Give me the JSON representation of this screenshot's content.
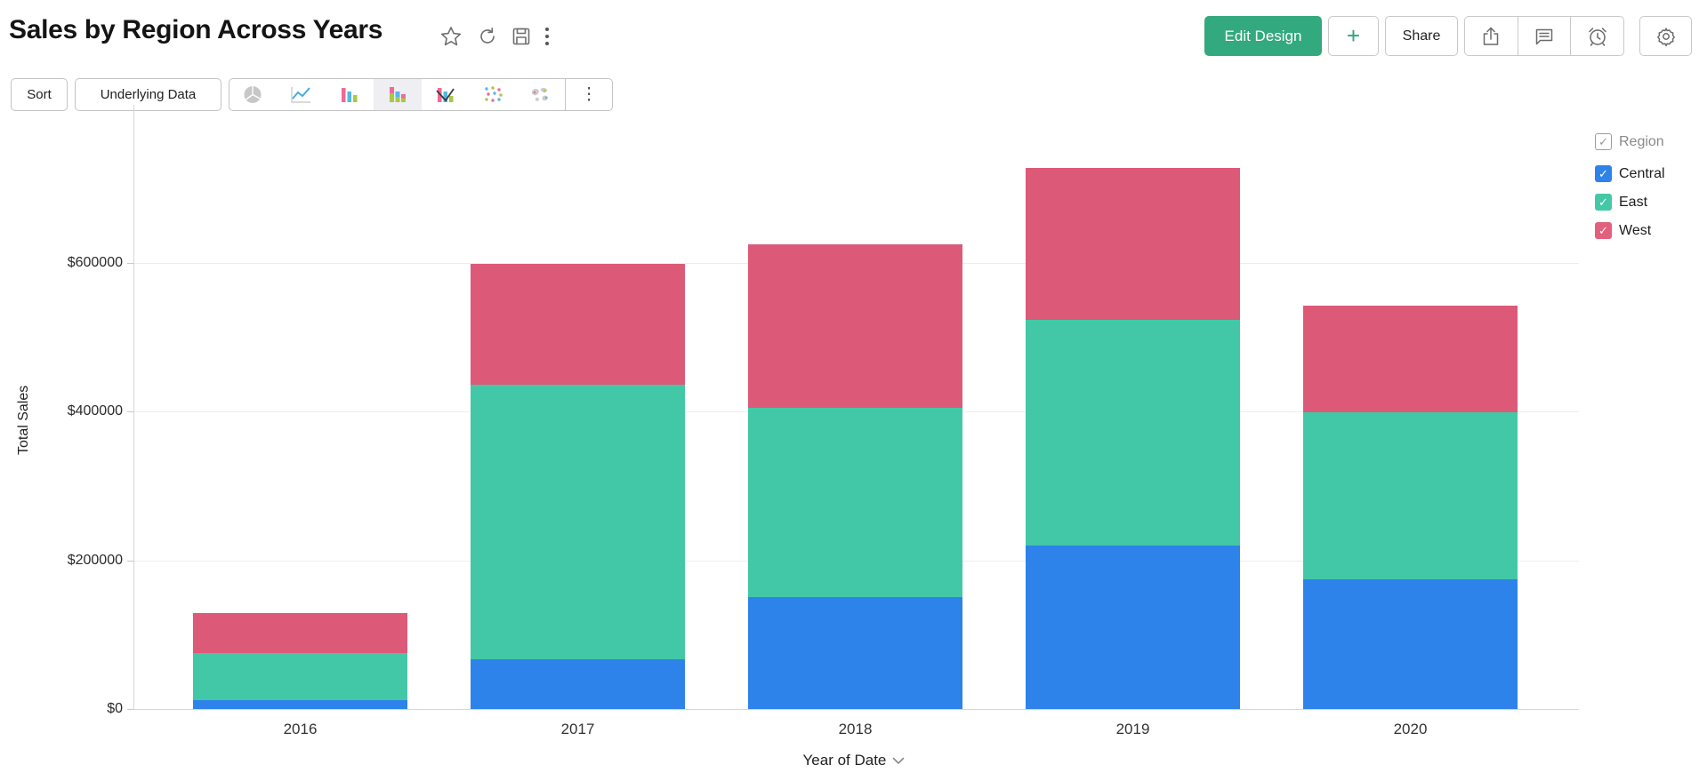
{
  "header": {
    "title": "Sales by Region Across Years",
    "icons": [
      "star",
      "refresh",
      "save",
      "more-vertical"
    ],
    "edit_design_label": "Edit Design",
    "plus_label": "+",
    "share_label": "Share"
  },
  "toolbar": {
    "sort_label": "Sort",
    "underlying_data_label": "Underlying Data",
    "chart_types": [
      {
        "name": "pie-chart",
        "selected": false
      },
      {
        "name": "line-chart",
        "selected": false
      },
      {
        "name": "bar-chart",
        "selected": false
      },
      {
        "name": "stacked-bar-chart",
        "selected": true
      },
      {
        "name": "combo-chart",
        "selected": false
      },
      {
        "name": "scatter-chart",
        "selected": false
      },
      {
        "name": "map-chart",
        "selected": false
      }
    ],
    "more_label": "⋮"
  },
  "legend": {
    "header": {
      "label": "Region",
      "checked": true
    },
    "items": [
      {
        "label": "Central",
        "color": "#2e83ea",
        "checked": true
      },
      {
        "label": "East",
        "color": "#45c8a5",
        "checked": true
      },
      {
        "label": "West",
        "color": "#e2607e",
        "checked": true
      }
    ]
  },
  "chart_data": {
    "type": "bar",
    "stacked": true,
    "title": "Sales by Region Across Years",
    "xlabel": "Year of Date",
    "ylabel": "Total Sales",
    "categories": [
      "2016",
      "2017",
      "2018",
      "2019",
      "2020"
    ],
    "series": [
      {
        "name": "Central",
        "color": "#2e83ea",
        "values": [
          12000,
          67000,
          151000,
          220000,
          174000
        ]
      },
      {
        "name": "East",
        "color": "#42c8a6",
        "values": [
          63000,
          369000,
          254000,
          303000,
          225000
        ]
      },
      {
        "name": "West",
        "color": "#dc5a78",
        "values": [
          54000,
          162000,
          220000,
          204000,
          143000
        ]
      }
    ],
    "totals": [
      129000,
      598000,
      625000,
      727000,
      542000
    ],
    "ylim": [
      0,
      800000
    ],
    "yticks": [
      {
        "value": 0,
        "label": "$0"
      },
      {
        "value": 200000,
        "label": "$200000"
      },
      {
        "value": 400000,
        "label": "$400000"
      },
      {
        "value": 600000,
        "label": "$600000"
      }
    ],
    "grid": true,
    "legend_position": "right"
  }
}
